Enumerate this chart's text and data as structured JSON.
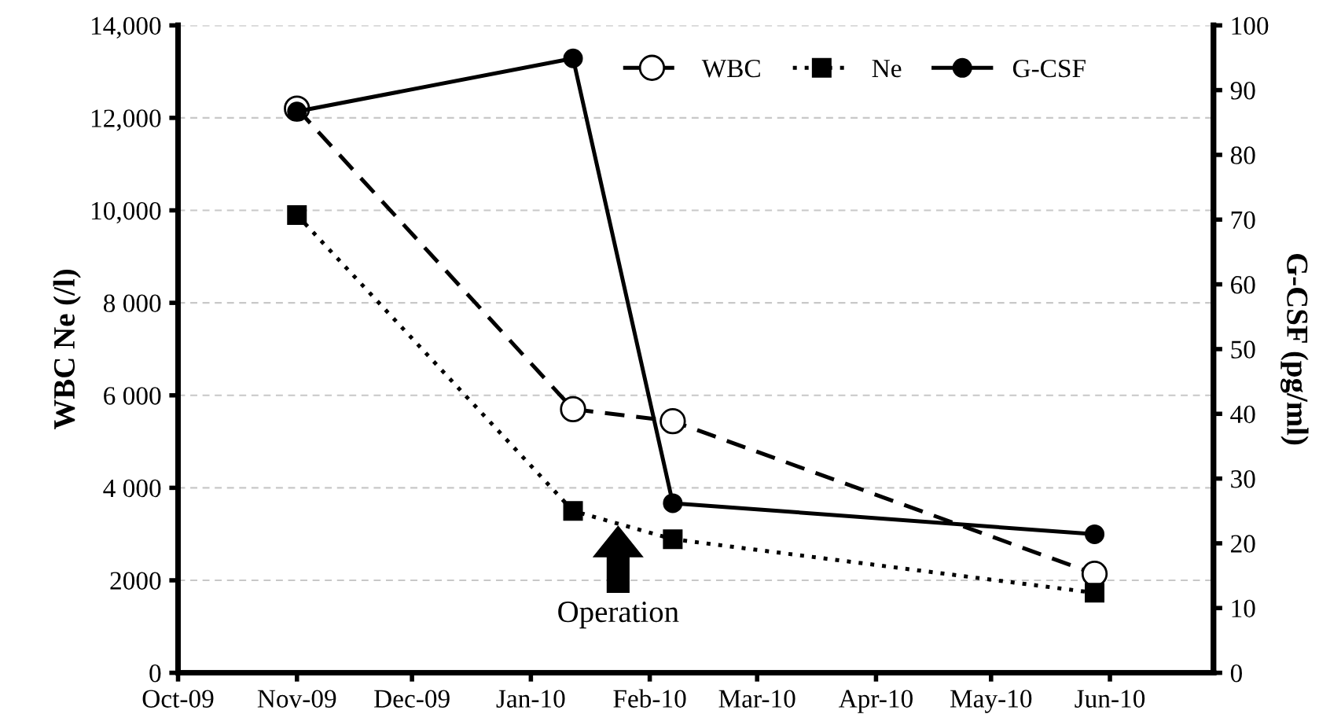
{
  "chart_data": {
    "type": "line",
    "ylabel": "WBC Ne (/l)",
    "y2label": "G-CSF (pg/ml)",
    "xlim": [
      "2009-10-01",
      "2010-06-28"
    ],
    "xticks": [
      {
        "value": "2009-10-01",
        "label": "Oct-09"
      },
      {
        "value": "2009-11-01",
        "label": "Nov-09"
      },
      {
        "value": "2009-12-01",
        "label": "Dec-09"
      },
      {
        "value": "2010-01-01",
        "label": "Jan-10"
      },
      {
        "value": "2010-02-01",
        "label": "Feb-10"
      },
      {
        "value": "2010-03-01",
        "label": "Mar-10"
      },
      {
        "value": "2010-04-01",
        "label": "Apr-10"
      },
      {
        "value": "2010-05-01",
        "label": "May-10"
      },
      {
        "value": "2010-06-01",
        "label": "Jun-10"
      }
    ],
    "ylim": [
      0,
      14000
    ],
    "yticks": [
      0,
      2000,
      {
        "value": 4000,
        "label": "4 000"
      },
      {
        "value": 6000,
        "label": "6 000"
      },
      {
        "value": 8000,
        "label": "8 000"
      },
      {
        "value": 10000,
        "label": "10,000"
      },
      {
        "value": 12000,
        "label": "12,000"
      },
      {
        "value": 14000,
        "label": "14,000"
      }
    ],
    "y2lim": [
      0,
      100
    ],
    "y2ticks": [
      0,
      10,
      20,
      30,
      40,
      50,
      60,
      70,
      80,
      90,
      100
    ],
    "grid": "y",
    "legend": "top right",
    "x": [
      "2009-11-01",
      "2010-01-12",
      "2010-02-07",
      "2010-05-28"
    ],
    "series": [
      {
        "name": "WBC",
        "color": "#000000",
        "marker": "circle",
        "line_style": "dashed",
        "values": [
          12200,
          5700,
          5440,
          2140
        ]
      },
      {
        "name": "Ne",
        "color": "#000000",
        "marker": "square",
        "line_style": "dotted",
        "values": [
          9900,
          3500,
          2890,
          1730
        ]
      },
      {
        "name": "G-CSF",
        "color": "#000000",
        "marker": "circle",
        "line_style": "solid",
        "axis": "y2",
        "values": [
          86.7,
          94.9,
          26.2,
          21.4
        ]
      }
    ],
    "annotations": [
      "Operation"
    ]
  }
}
